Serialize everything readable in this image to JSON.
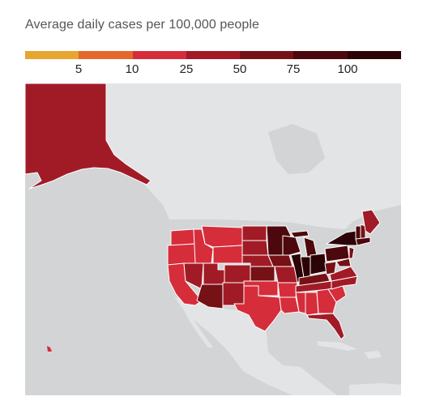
{
  "title": "Average daily cases per 100,000 people",
  "legend": {
    "colors": [
      "#e8a530",
      "#e5682b",
      "#d62d3b",
      "#a11b26",
      "#761116",
      "#4c080c",
      "#2c0307"
    ],
    "labels": [
      "5",
      "10",
      "25",
      "50",
      "75",
      "100"
    ]
  },
  "map": {
    "ocean_color": "#d2d4d6",
    "land_color": "#e3e4e6",
    "border_color": "#ffffff"
  }
}
